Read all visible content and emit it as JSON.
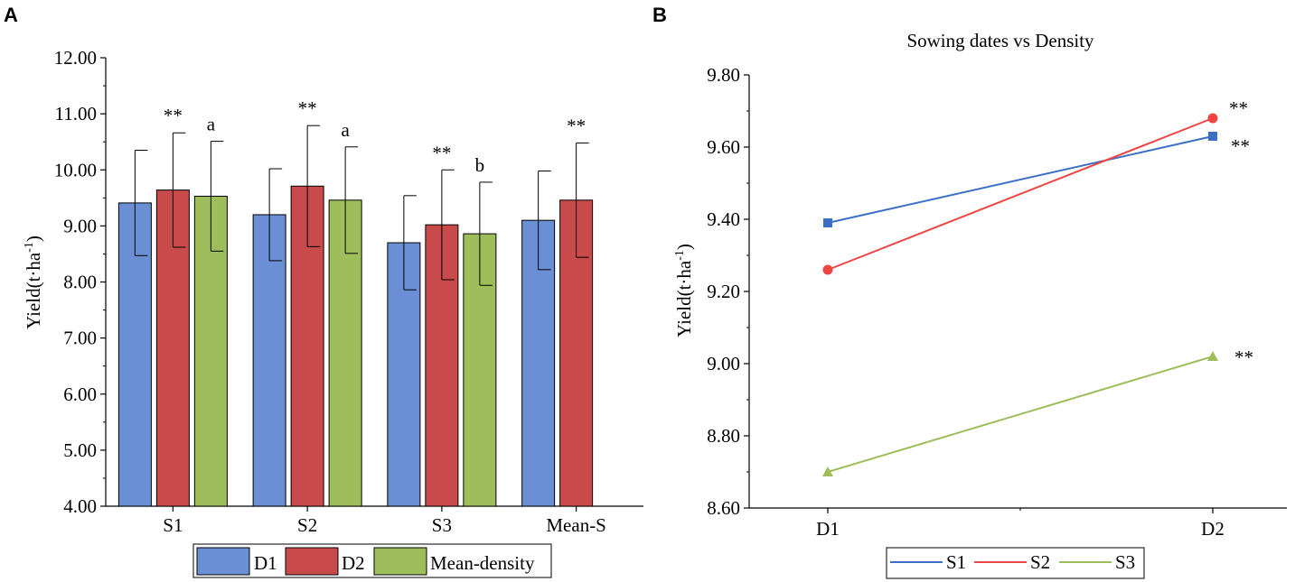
{
  "panel_labels": {
    "a": "A",
    "b": "B"
  },
  "chart_data": [
    {
      "type": "bar",
      "panel": "A",
      "title": "",
      "ylabel": "Yield(t·ha",
      "ylabel_sup": "-1",
      "ylabel_close": ")",
      "xlabel": "",
      "ylim": [
        4.0,
        12.0
      ],
      "yticks": [
        "4.00",
        "5.00",
        "6.00",
        "7.00",
        "8.00",
        "9.00",
        "10.00",
        "11.00",
        "12.00"
      ],
      "categories": [
        "S1",
        "S2",
        "S3",
        "Mean-S"
      ],
      "series": [
        {
          "name": "D1",
          "color": "#6a8fd4",
          "values": [
            9.41,
            9.2,
            8.7,
            9.1
          ],
          "errors": [
            0.94,
            0.82,
            0.84,
            0.88
          ]
        },
        {
          "name": "D2",
          "color": "#c84a4a",
          "values": [
            9.64,
            9.71,
            9.02,
            9.46
          ],
          "errors": [
            1.02,
            1.08,
            0.98,
            1.02
          ]
        },
        {
          "name": "Mean-density",
          "color": "#9dbe5a",
          "values": [
            9.53,
            9.46,
            8.86,
            null
          ],
          "errors": [
            0.98,
            0.95,
            0.92,
            null
          ]
        }
      ],
      "annotations": [
        {
          "category": 0,
          "series": 1,
          "text": "**"
        },
        {
          "category": 0,
          "series": 2,
          "text": "a"
        },
        {
          "category": 1,
          "series": 1,
          "text": "**"
        },
        {
          "category": 1,
          "series": 2,
          "text": "a"
        },
        {
          "category": 2,
          "series": 1,
          "text": "**"
        },
        {
          "category": 2,
          "series": 2,
          "text": "b"
        },
        {
          "category": 3,
          "series": 1,
          "text": "**"
        }
      ],
      "legend": {
        "position": "bottom",
        "items": [
          "D1",
          "D2",
          "Mean-density"
        ]
      }
    },
    {
      "type": "line",
      "panel": "B",
      "title": "Sowing dates vs Density",
      "ylabel": "Yield(t·ha",
      "ylabel_sup": "-1",
      "ylabel_close": ")",
      "xlabel": "",
      "ylim": [
        8.6,
        9.8
      ],
      "yticks": [
        "8.60",
        "8.80",
        "9.00",
        "9.20",
        "9.40",
        "9.60",
        "9.80"
      ],
      "categories": [
        "D1",
        "D2"
      ],
      "series": [
        {
          "name": "S1",
          "color": "#3a6fc4",
          "marker": "square",
          "values": [
            9.39,
            9.63
          ],
          "end_label": "**"
        },
        {
          "name": "S2",
          "color": "#ef4444",
          "marker": "circle",
          "values": [
            9.26,
            9.68
          ],
          "end_label": "**"
        },
        {
          "name": "S3",
          "color": "#9dbe5a",
          "marker": "triangle",
          "values": [
            8.7,
            9.02
          ],
          "end_label": "**"
        }
      ],
      "legend": {
        "position": "bottom",
        "items": [
          "S1",
          "S2",
          "S3"
        ]
      }
    }
  ]
}
